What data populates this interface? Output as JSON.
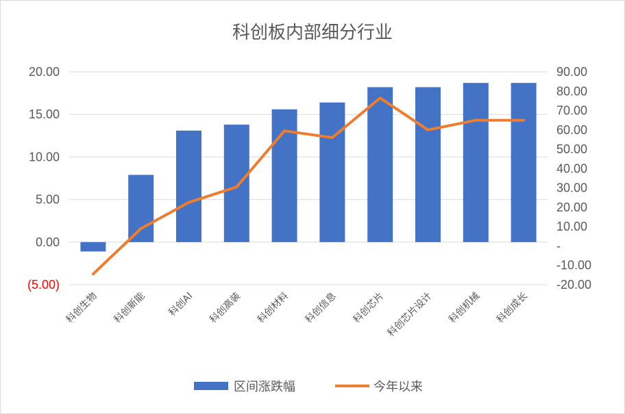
{
  "chart_data": {
    "type": "bar",
    "title": "科创板内部细分行业",
    "categories": [
      "科创生物",
      "科创新能",
      "科创AI",
      "科创高装",
      "科创材料",
      "科创信息",
      "科创芯片",
      "科创芯片设计",
      "科创机械",
      "科创成长"
    ],
    "series": [
      {
        "name": "区间涨跌幅",
        "type": "bar",
        "axis": "left",
        "color": "#4472c4",
        "values": [
          -1.1,
          7.9,
          13.1,
          13.8,
          15.6,
          16.4,
          18.2,
          18.2,
          18.7,
          18.7
        ]
      },
      {
        "name": "今年以来",
        "type": "line",
        "axis": "right",
        "color": "#ed7d31",
        "values": [
          -14.5,
          9.0,
          22.5,
          30.5,
          59.5,
          56.0,
          76.5,
          60.0,
          65.0,
          65.0
        ]
      }
    ],
    "y_left": {
      "min": -5,
      "max": 20,
      "ticks": [
        20,
        15,
        10,
        5,
        0,
        -5
      ],
      "tick_labels": [
        "20.00",
        "15.00",
        "10.00",
        "5.00",
        "0.00",
        "(5.00)"
      ],
      "negative_label_color": "#ff0000"
    },
    "y_right": {
      "min": -20,
      "max": 90,
      "ticks": [
        90,
        80,
        70,
        60,
        50,
        40,
        30,
        20,
        10,
        0,
        -10,
        -20
      ],
      "tick_labels": [
        "90.00",
        "80.00",
        "70.00",
        "60.00",
        "50.00",
        "40.00",
        "30.00",
        "20.00",
        "10.00",
        "-",
        "-10.00",
        "-20.00"
      ]
    },
    "grid": true,
    "legend_position": "bottom"
  }
}
